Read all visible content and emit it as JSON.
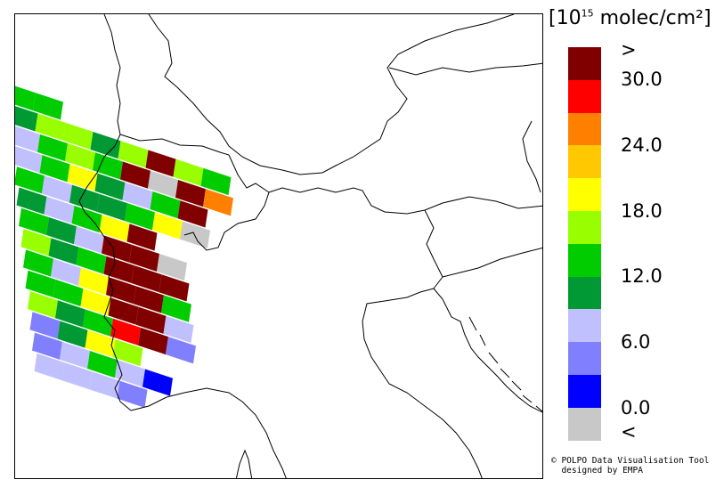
{
  "legend": {
    "unit_prefix": "[10",
    "unit_exponent": "15",
    "unit_suffix": " molec/cm²]",
    "colors": [
      "#800000",
      "#ff0000",
      "#ff8000",
      "#ffc800",
      "#ffff00",
      "#99ff00",
      "#00cc00",
      "#009933",
      "#c0c0ff",
      "#8080ff",
      "#0000ff",
      "#c8c8c8"
    ],
    "ticks": [
      ">",
      "30.0",
      "24.0",
      "18.0",
      "12.0",
      "6.0",
      "0.0",
      "<"
    ]
  },
  "credits": {
    "line1": "© POLPO Data Visualisation Tool",
    "line2": "  designed by EMPA"
  }
}
